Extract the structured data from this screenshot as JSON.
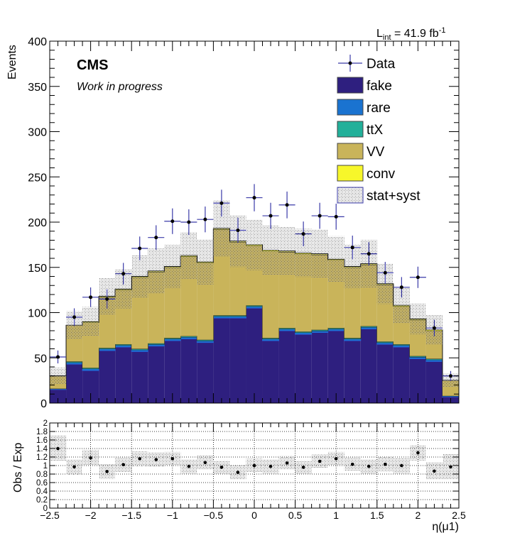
{
  "header": {
    "lumi_label": "L",
    "lumi_sub": "int",
    "lumi_value": " = 41.9 fb",
    "lumi_sup": "-1"
  },
  "labels": {
    "cms": "CMS",
    "wip": "Work in progress"
  },
  "legend": [
    {
      "key": "data",
      "label": "Data"
    },
    {
      "key": "fake",
      "label": "fake",
      "color": "#2e1f7f"
    },
    {
      "key": "rare",
      "label": "rare",
      "color": "#1a73d0"
    },
    {
      "key": "ttx",
      "label": "ttX",
      "color": "#22b09a"
    },
    {
      "key": "vv",
      "label": "VV",
      "color": "#c9b45a"
    },
    {
      "key": "conv",
      "label": "conv",
      "color": "#f7f72a"
    },
    {
      "key": "syst",
      "label": "stat+syst"
    }
  ],
  "chart_data": [
    {
      "type": "bar",
      "stacked": true,
      "xlabel": "η(μ1)",
      "ylabel": "Events",
      "xlim": [
        -2.5,
        2.5
      ],
      "ylim": [
        0,
        400
      ],
      "x_ticks": [
        "−2.5",
        "−2",
        "−1.5",
        "−1",
        "−0.5",
        "0",
        "0.5",
        "1",
        "1.5",
        "2",
        "2.5"
      ],
      "y_ticks": [
        "0",
        "50",
        "100",
        "150",
        "200",
        "250",
        "300",
        "350",
        "400"
      ],
      "bin_edges": [
        -2.5,
        -2.3,
        -2.1,
        -1.9,
        -1.7,
        -1.5,
        -1.3,
        -1.1,
        -0.9,
        -0.7,
        -0.5,
        -0.3,
        -0.1,
        0.1,
        0.3,
        0.5,
        0.7,
        0.9,
        1.1,
        1.3,
        1.5,
        1.7,
        1.9,
        2.1,
        2.3,
        2.5
      ],
      "series": [
        {
          "name": "fake",
          "color": "#2e1f7f",
          "values": [
            15,
            43,
            36,
            58,
            62,
            57,
            63,
            69,
            71,
            67,
            94,
            94,
            105,
            69,
            80,
            76,
            78,
            80,
            69,
            82,
            65,
            62,
            49,
            46,
            7
          ]
        },
        {
          "name": "rare",
          "color": "#1a73d0",
          "values": [
            1,
            2,
            2,
            2,
            2,
            2,
            2,
            2,
            2,
            2,
            2,
            2,
            2,
            2,
            2,
            2,
            2,
            2,
            2,
            2,
            2,
            2,
            2,
            2,
            1
          ]
        },
        {
          "name": "ttX",
          "color": "#22b09a",
          "values": [
            0,
            1,
            1,
            1,
            1,
            1,
            1,
            1,
            1,
            1,
            1,
            1,
            1,
            1,
            1,
            1,
            1,
            1,
            1,
            1,
            1,
            1,
            1,
            1,
            0
          ]
        },
        {
          "name": "VV",
          "color": "#c9b45a",
          "values": [
            14,
            40,
            50,
            56,
            60,
            79,
            79,
            78,
            88,
            85,
            95,
            81,
            66,
            96,
            84,
            86,
            83,
            75,
            78,
            68,
            63,
            42,
            40,
            31,
            17
          ]
        },
        {
          "name": "conv",
          "color": "#f7f72a",
          "values": [
            0,
            0,
            1,
            1,
            1,
            1,
            1,
            1,
            1,
            1,
            1,
            1,
            1,
            1,
            1,
            1,
            1,
            1,
            1,
            1,
            1,
            1,
            1,
            1,
            0
          ]
        }
      ],
      "band": {
        "name": "stat+syst",
        "rel_error": [
          0.3,
          0.18,
          0.18,
          0.17,
          0.17,
          0.17,
          0.17,
          0.16,
          0.16,
          0.16,
          0.16,
          0.16,
          0.16,
          0.16,
          0.16,
          0.16,
          0.16,
          0.16,
          0.16,
          0.17,
          0.17,
          0.18,
          0.18,
          0.2,
          0.3
        ]
      },
      "data": {
        "name": "Data",
        "x": [
          -2.4,
          -2.2,
          -2.0,
          -1.8,
          -1.6,
          -1.4,
          -1.2,
          -1.0,
          -0.8,
          -0.6,
          -0.4,
          -0.2,
          0.0,
          0.2,
          0.4,
          0.6,
          0.8,
          1.0,
          1.2,
          1.4,
          1.6,
          1.8,
          2.0,
          2.2,
          2.4
        ],
        "y": [
          51,
          95,
          117,
          115,
          143,
          171,
          183,
          201,
          200,
          203,
          221,
          191,
          227,
          207,
          219,
          187,
          207,
          206,
          172,
          165,
          144,
          128,
          139,
          83,
          30
        ]
      }
    },
    {
      "type": "scatter",
      "ylabel": "Obs / Exp",
      "xlim": [
        -2.5,
        2.5
      ],
      "ylim": [
        0,
        2
      ],
      "y_ticks": [
        "0",
        "0.2",
        "0.4",
        "0.6",
        "0.8",
        "1",
        "1.2",
        "1.4",
        "1.6",
        "1.8",
        "2"
      ],
      "x": [
        -2.4,
        -2.2,
        -2.0,
        -1.8,
        -1.6,
        -1.4,
        -1.2,
        -1.0,
        -0.8,
        -0.6,
        -0.4,
        -0.2,
        0.0,
        0.2,
        0.4,
        0.6,
        0.8,
        1.0,
        1.2,
        1.4,
        1.6,
        1.8,
        2.0,
        2.2,
        2.4
      ],
      "ratio": [
        1.4,
        0.97,
        1.18,
        0.86,
        1.02,
        1.16,
        1.14,
        1.16,
        0.98,
        1.07,
        0.96,
        0.84,
        1.0,
        0.98,
        1.06,
        0.96,
        1.1,
        1.16,
        1.03,
        0.98,
        1.03,
        1.0,
        1.3,
        0.87,
        0.97
      ],
      "band_rel_error": [
        0.3,
        0.18,
        0.18,
        0.17,
        0.17,
        0.17,
        0.17,
        0.16,
        0.16,
        0.16,
        0.16,
        0.16,
        0.16,
        0.16,
        0.16,
        0.16,
        0.16,
        0.16,
        0.16,
        0.17,
        0.17,
        0.18,
        0.18,
        0.2,
        0.3
      ]
    }
  ]
}
